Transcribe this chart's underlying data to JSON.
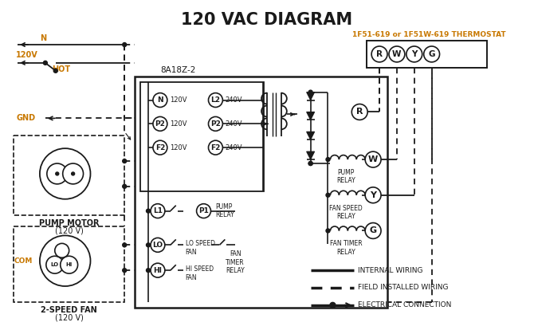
{
  "title": "120 VAC DIAGRAM",
  "thermostat_label": "1F51-619 or 1F51W-619 THERMOSTAT",
  "controller_label": "8A18Z-2",
  "thermostat_terminals": [
    "R",
    "W",
    "Y",
    "G"
  ],
  "orange_color": "#c87800",
  "black_color": "#1a1a1a",
  "bg_color": "#ffffff",
  "title_fontsize": 15,
  "figw": 6.7,
  "figh": 4.19,
  "dpi": 100
}
